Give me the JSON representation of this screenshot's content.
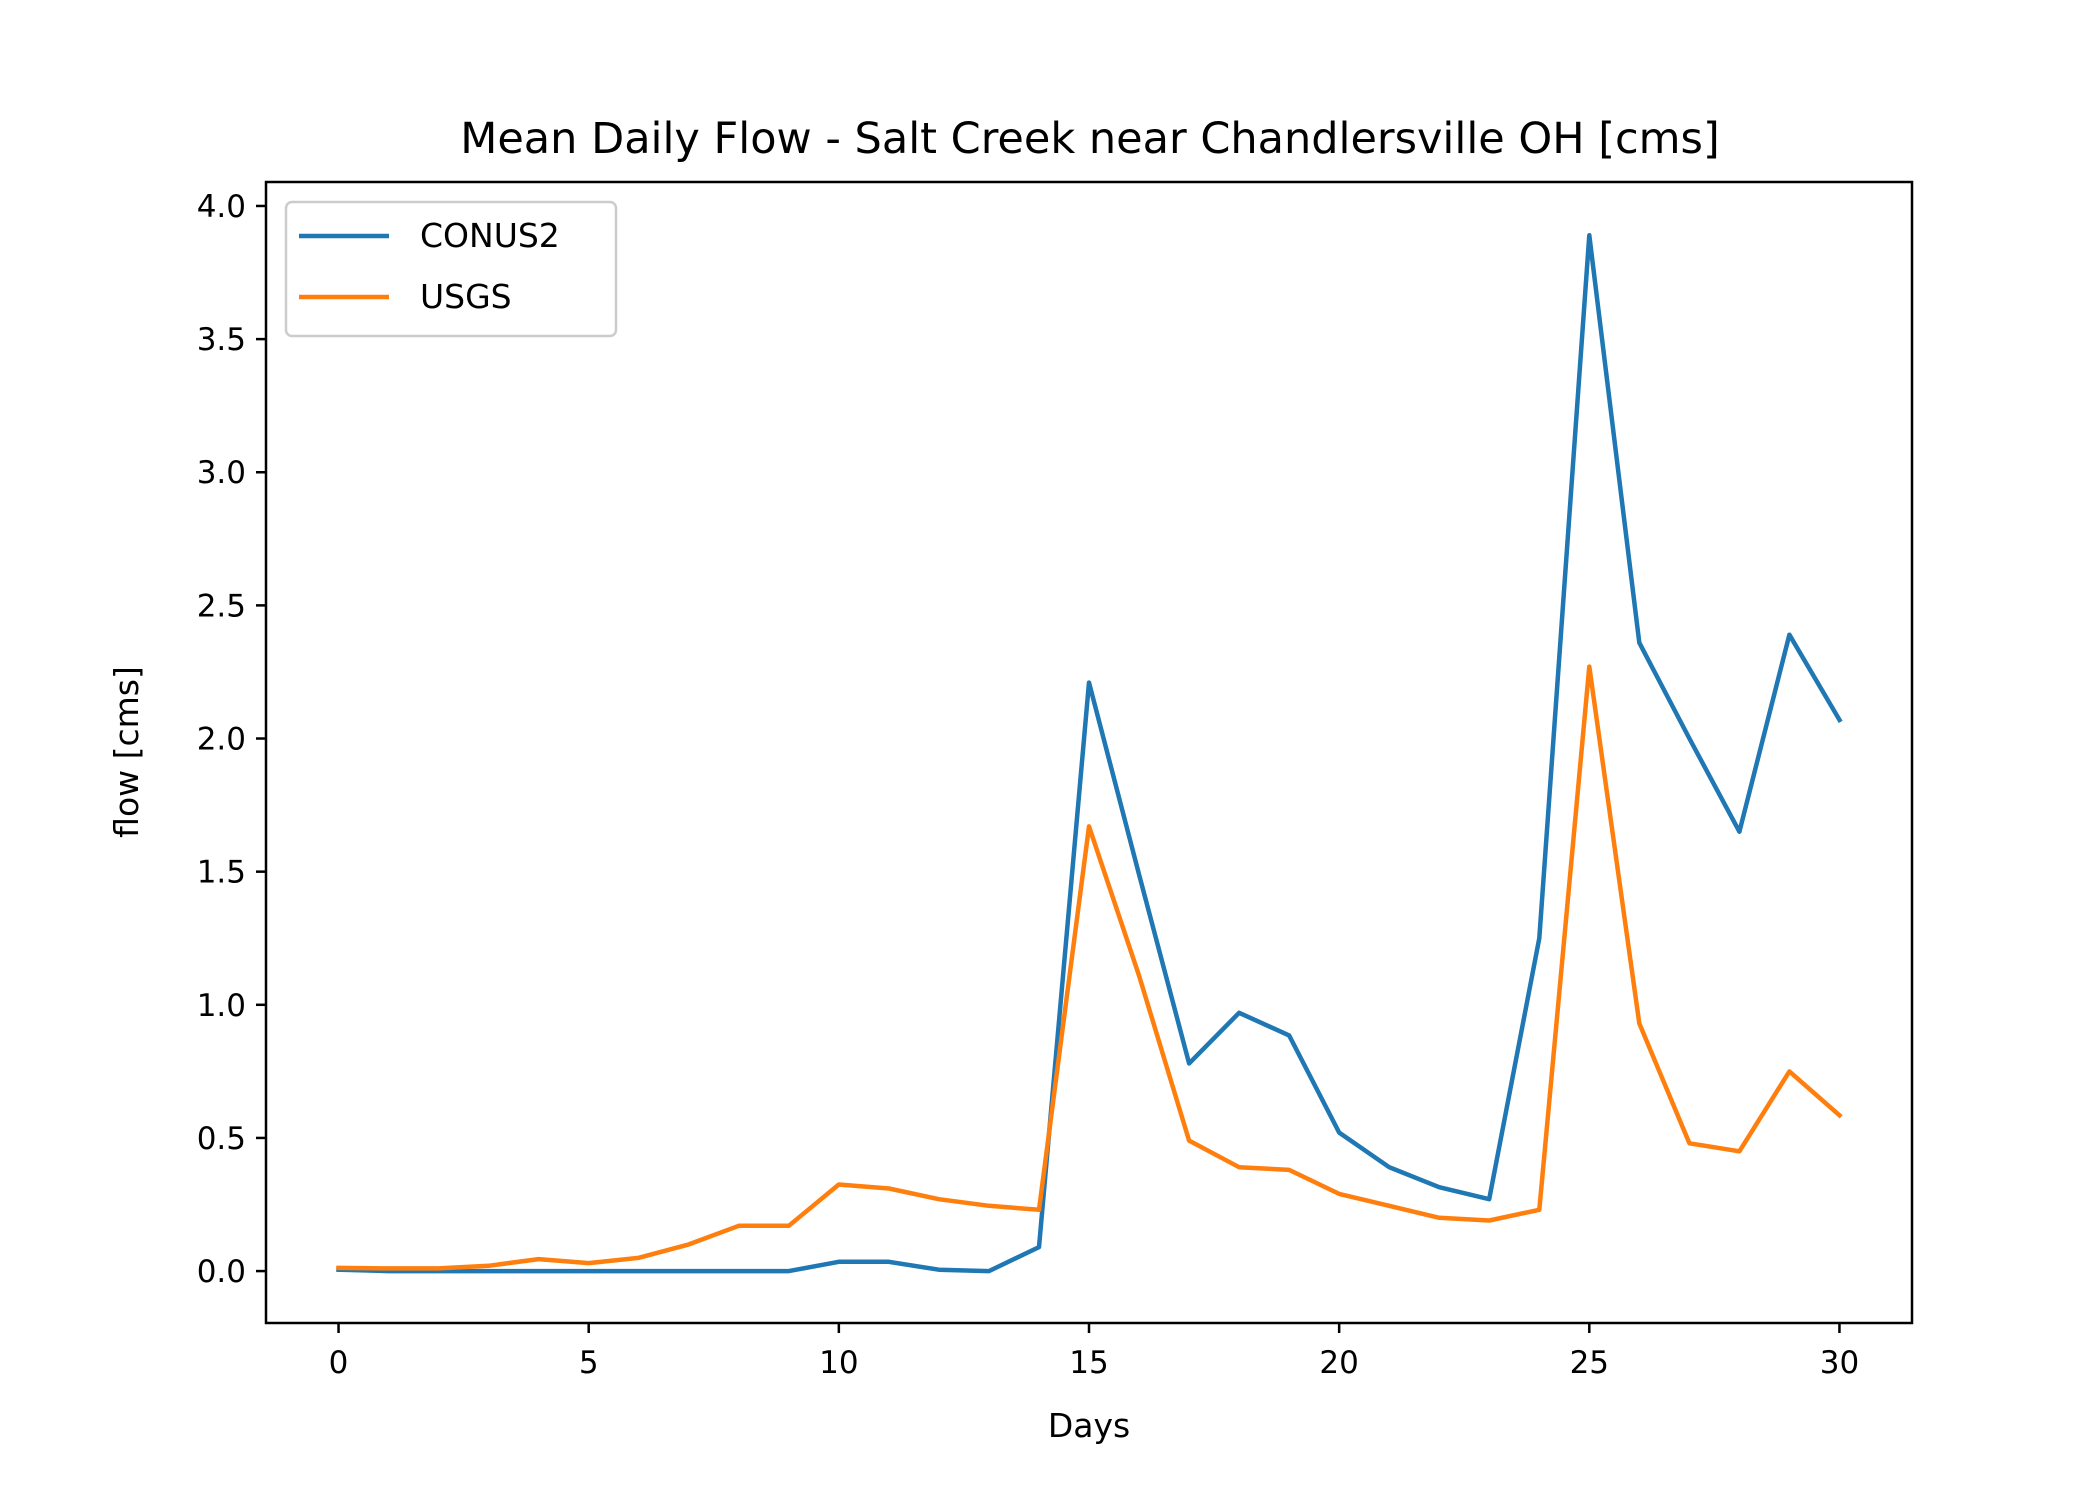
{
  "chart_data": {
    "type": "line",
    "title": "Mean Daily Flow - Salt Creek near Chandlersville OH [cms]",
    "xlabel": "Days",
    "ylabel": "flow [cms]",
    "xlim": [
      -1.45,
      31.45
    ],
    "ylim": [
      -0.195,
      4.09
    ],
    "xticks": [
      0,
      5,
      10,
      15,
      20,
      25,
      30
    ],
    "xtick_labels": [
      "0",
      "5",
      "10",
      "15",
      "20",
      "25",
      "30"
    ],
    "yticks": [
      0.0,
      0.5,
      1.0,
      1.5,
      2.0,
      2.5,
      3.0,
      3.5,
      4.0
    ],
    "ytick_labels": [
      "0.0",
      "0.5",
      "1.0",
      "1.5",
      "2.0",
      "2.5",
      "3.0",
      "3.5",
      "4.0"
    ],
    "grid": false,
    "legend_position": "top-left",
    "x": [
      0,
      1,
      2,
      3,
      4,
      5,
      6,
      7,
      8,
      9,
      10,
      11,
      12,
      13,
      14,
      15,
      16,
      17,
      18,
      19,
      20,
      21,
      22,
      23,
      24,
      25,
      26,
      27,
      28,
      29,
      30
    ],
    "series": [
      {
        "name": "CONUS2",
        "color": "#1f77b4",
        "values": [
          0.005,
          0.0,
          0.0,
          0.0,
          0.0,
          0.0,
          0.0,
          0.0,
          0.0,
          0.0,
          0.035,
          0.035,
          0.005,
          0.0,
          0.09,
          2.21,
          1.49,
          0.78,
          0.97,
          0.885,
          0.52,
          0.39,
          0.315,
          0.27,
          1.25,
          3.89,
          2.36,
          2.0,
          1.65,
          2.39,
          2.07
        ]
      },
      {
        "name": "USGS",
        "color": "#ff7f0e",
        "values": [
          0.012,
          0.01,
          0.01,
          0.02,
          0.045,
          0.03,
          0.05,
          0.1,
          0.17,
          0.17,
          0.325,
          0.31,
          0.27,
          0.245,
          0.23,
          1.67,
          1.11,
          0.49,
          0.39,
          0.38,
          0.29,
          0.245,
          0.2,
          0.19,
          0.23,
          2.27,
          0.93,
          0.48,
          0.45,
          0.75,
          0.585
        ]
      }
    ]
  }
}
